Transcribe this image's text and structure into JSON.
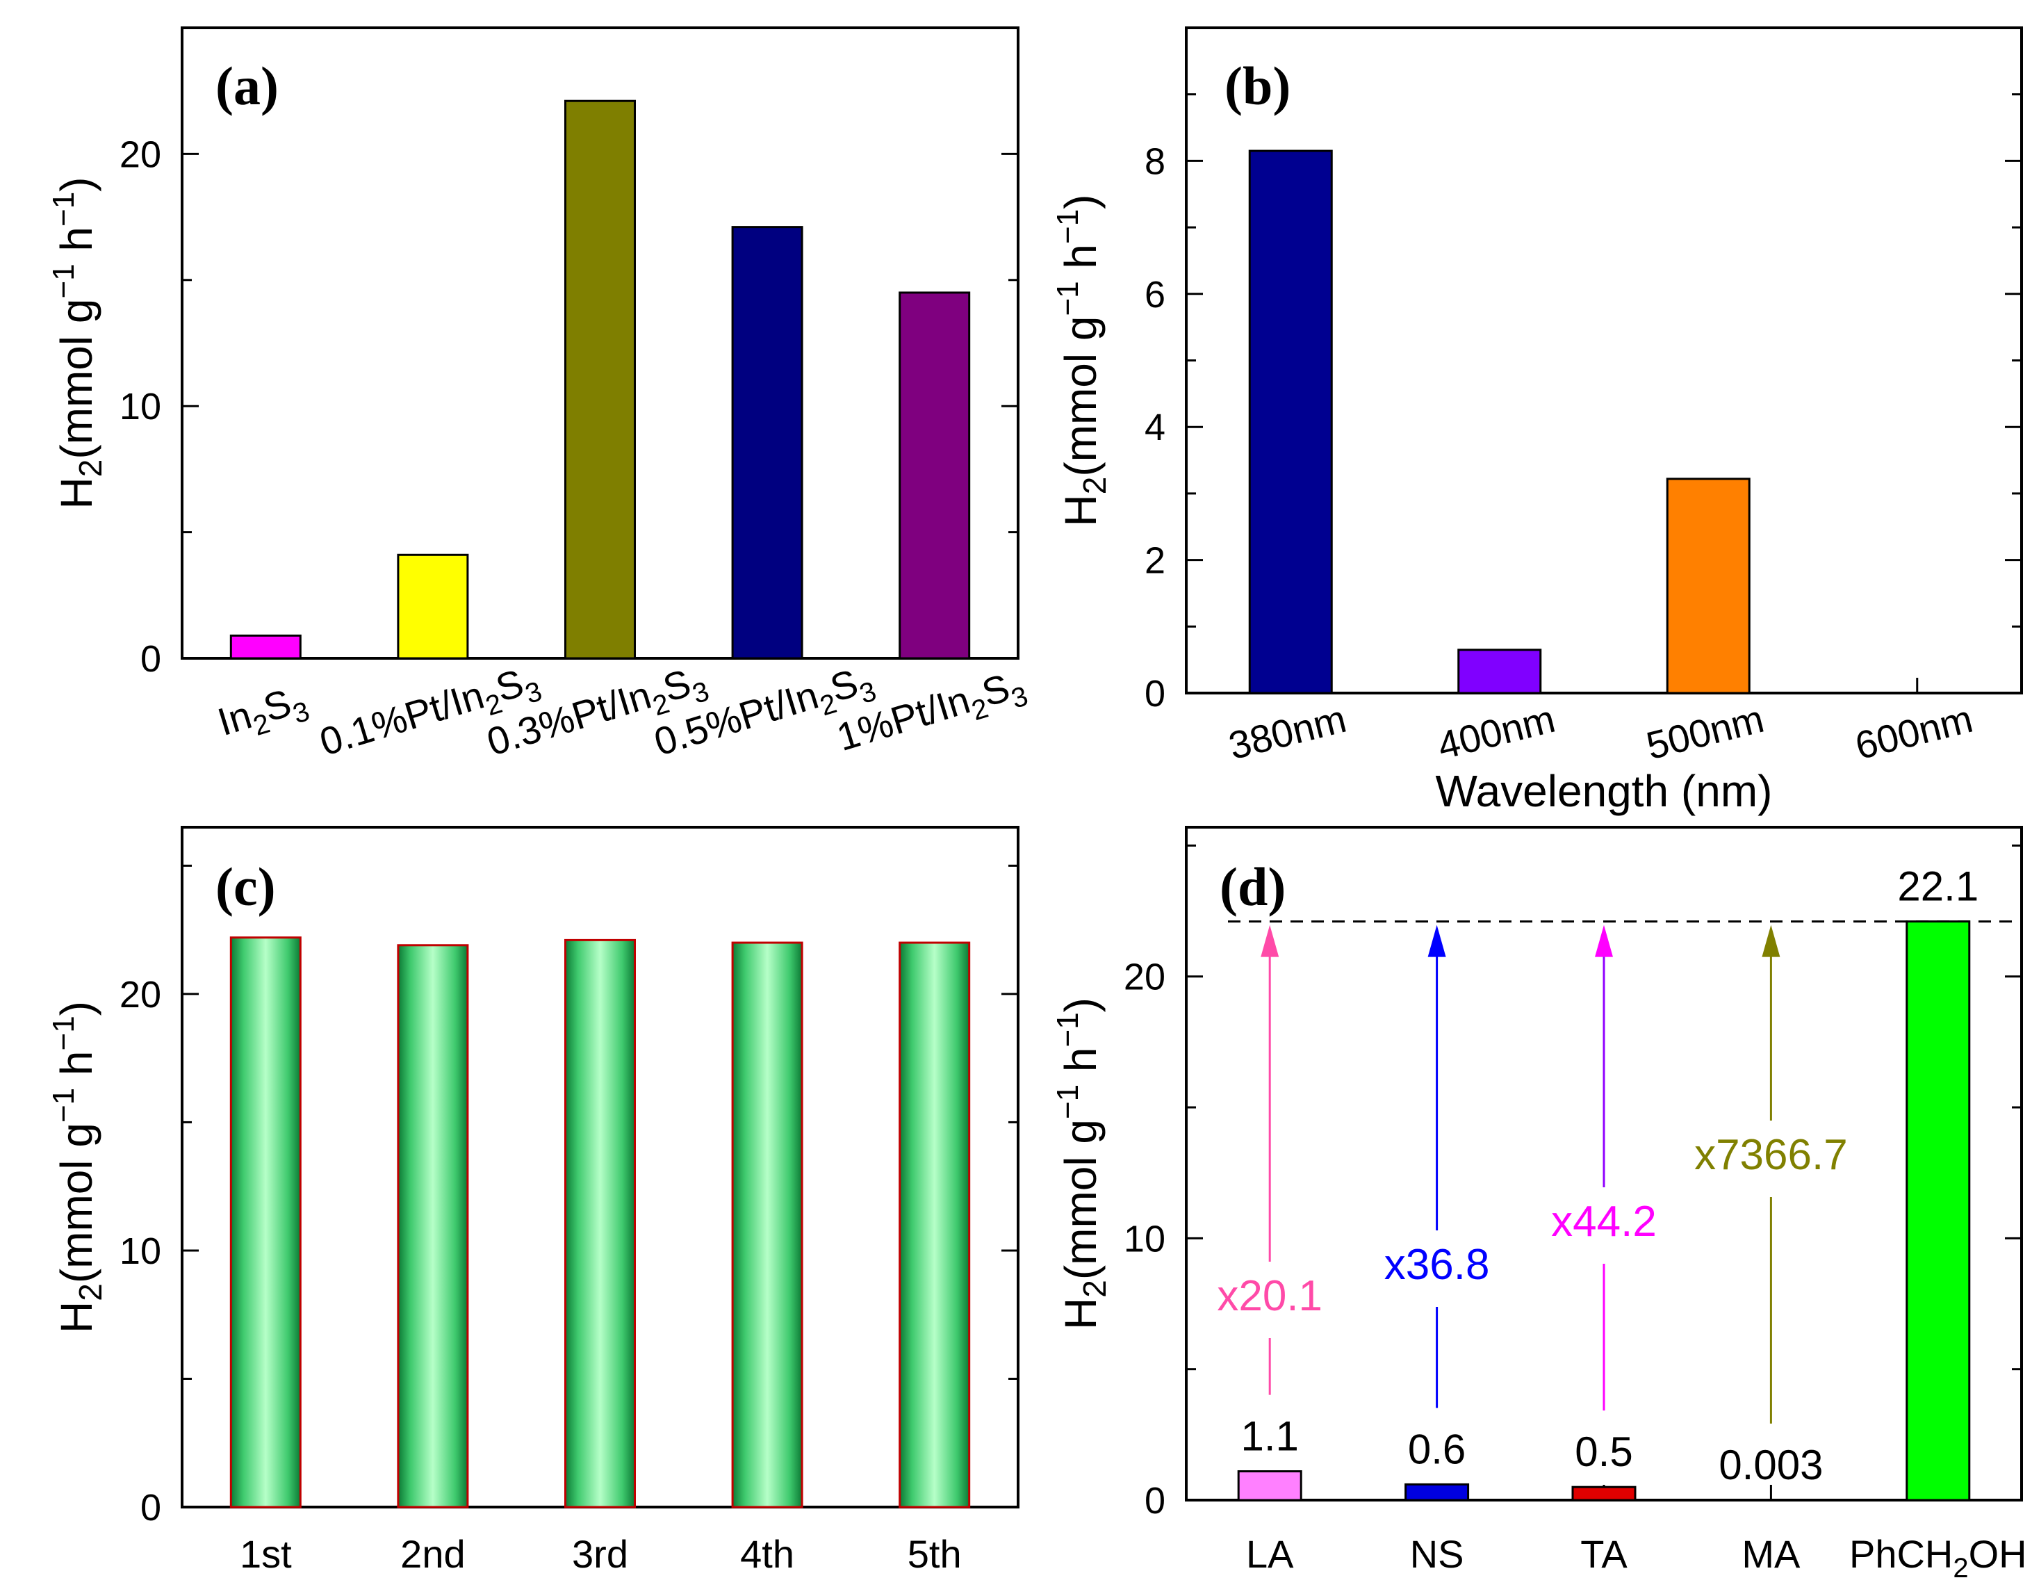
{
  "chart_data": [
    {
      "panel": "(a)",
      "type": "bar",
      "ylabel": "H2(mmol g−1 h−1)",
      "ylim": [
        0,
        25
      ],
      "yticks": [
        0,
        10,
        20
      ],
      "categories": [
        "In2S3",
        "0.1%Pt/In2S3",
        "0.3%Pt/In2S3",
        "0.5%Pt/In2S3",
        "1%Pt/In2S3"
      ],
      "values": [
        0.9,
        4.1,
        22.1,
        17.1,
        14.5
      ],
      "colors": [
        "#ff00ff",
        "#ffff00",
        "#7f7f00",
        "#000080",
        "#7f007f"
      ]
    },
    {
      "panel": "(b)",
      "type": "bar",
      "xlabel": "Wavelength (nm)",
      "ylabel": "H2(mmol g−1 h−1)",
      "ylim": [
        0,
        10
      ],
      "yticks": [
        0,
        2,
        4,
        6,
        8
      ],
      "categories": [
        "380nm",
        "400nm",
        "500nm",
        "600nm"
      ],
      "values": [
        8.15,
        0.65,
        3.22,
        0
      ],
      "colors": [
        "#000090",
        "#8000ff",
        "#ff8000",
        "#ffffff"
      ]
    },
    {
      "panel": "(c)",
      "type": "bar",
      "ylabel": "H2(mmol g−1 h−1)",
      "ylim": [
        0,
        26.5
      ],
      "yticks": [
        0,
        10,
        20
      ],
      "categories": [
        "1st",
        "2nd",
        "3rd",
        "4th",
        "5th"
      ],
      "values": [
        22.2,
        21.9,
        22.1,
        22.0,
        22.0
      ],
      "bar_fill": "green cylinder gradient",
      "edge_color": "#c00000"
    },
    {
      "panel": "(d)",
      "type": "bar",
      "ylabel": "H2(mmol g−1 h−1)",
      "ylim": [
        0,
        25.7
      ],
      "yticks": [
        0,
        10,
        20
      ],
      "categories": [
        "LA",
        "NS",
        "TA",
        "MA",
        "PhCH2OH"
      ],
      "values": [
        1.1,
        0.6,
        0.5,
        0.003,
        22.1
      ],
      "value_labels": [
        "1.1",
        "0.6",
        "0.5",
        "0.003",
        "22.1"
      ],
      "colors": [
        "#ff80ff",
        "#0000e0",
        "#e00000",
        "#808000",
        "#00ff00"
      ],
      "reference_line": 22.1,
      "enhancements": [
        {
          "category": "LA",
          "label": "x20.1",
          "color": "#ff4aa8"
        },
        {
          "category": "NS",
          "label": "x36.8",
          "color": "#0000ff"
        },
        {
          "category": "TA",
          "label": "x44.2",
          "color": "#ff00ff",
          "arrow_gradient_end": "#9000ff"
        },
        {
          "category": "MA",
          "label": "x7366.7",
          "color": "#808000"
        }
      ]
    }
  ]
}
